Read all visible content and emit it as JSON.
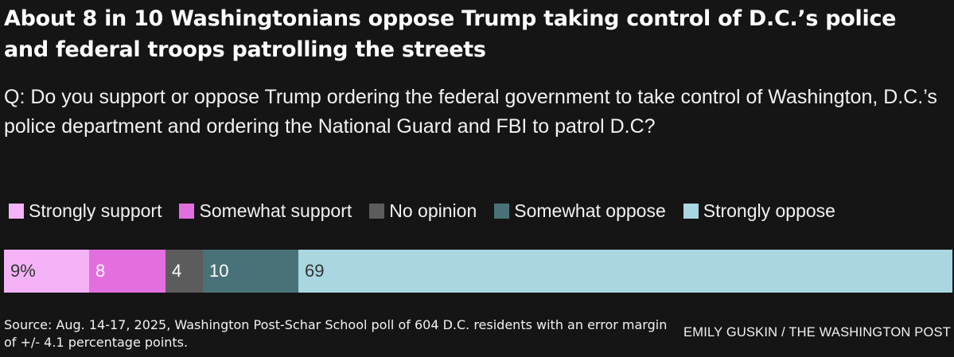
{
  "title": "About 8 in 10 Washingtonians oppose Trump taking control of D.C.’s police and federal troops patrolling the streets",
  "question": "Q: Do you support or oppose Trump ordering the federal government to take control of Washington, D.C.’s police department and ordering the National Guard and FBI to patrol D.C?",
  "chart_data": {
    "type": "bar",
    "orientation": "horizontal-stacked",
    "title": "About 8 in 10 Washingtonians oppose Trump taking control of D.C.’s police and federal troops patrolling the streets",
    "legend_position": "top",
    "grid": false,
    "xlim": [
      0,
      100
    ],
    "series": [
      {
        "name": "Strongly support",
        "value": 9,
        "label": "9%",
        "color": "#f4b3f6",
        "label_color": "#333333"
      },
      {
        "name": "Somewhat support",
        "value": 8,
        "label": "8",
        "color": "#e36fdf",
        "label_color": "#ffffff"
      },
      {
        "name": "No opinion",
        "value": 4,
        "label": "4",
        "color": "#5c5c5c",
        "label_color": "#ffffff"
      },
      {
        "name": "Somewhat oppose",
        "value": 10,
        "label": "10",
        "color": "#497278",
        "label_color": "#ffffff"
      },
      {
        "name": "Strongly oppose",
        "value": 69,
        "label": "69",
        "color": "#a9d6e1",
        "label_color": "#333333"
      }
    ]
  },
  "source": "Source: Aug. 14-17, 2025, Washington Post-Schar School poll of 604 D.C. residents with an error margin of +/- 4.1 percentage points.",
  "credit": "EMILY GUSKIN / THE WASHINGTON POST"
}
